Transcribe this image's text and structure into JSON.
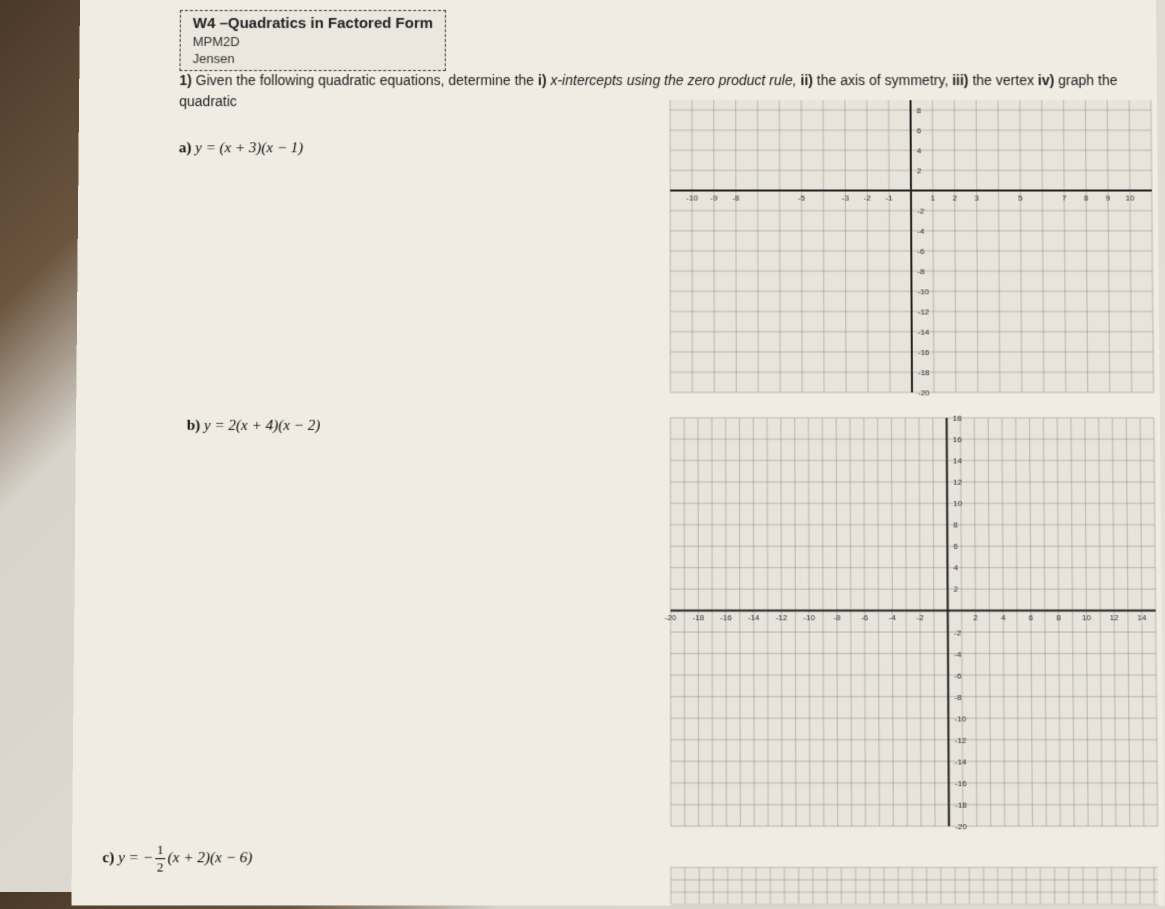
{
  "header": {
    "title": "W4 –Quadratics in Factored Form",
    "course": "MPM2D",
    "teacher": "Jensen"
  },
  "question": {
    "number": "1)",
    "text_part1": "Given the following quadratic equations, determine the ",
    "part_i": "i)",
    "text_i": " x-intercepts using the zero product rule, ",
    "part_ii": "ii)",
    "text_ii": " the axis of symmetry, ",
    "part_iii": "iii)",
    "text_iii": " the vertex ",
    "part_iv": "iv)",
    "text_iv": " graph the quadratic"
  },
  "equations": {
    "a": {
      "label": "a)",
      "formula": "y = (x + 3)(x − 1)"
    },
    "b": {
      "label": "b)",
      "formula": "y = 2(x + 4)(x − 2)"
    },
    "c": {
      "label": "c)",
      "prefix": "y = −",
      "num": "1",
      "den": "2",
      "suffix": "(x + 2)(x − 6)"
    }
  },
  "grid_a": {
    "type": "coordinate_grid",
    "x_range": [
      -11,
      11
    ],
    "y_range": [
      -20,
      9
    ],
    "x_step": 1,
    "y_step": 2,
    "axis_x_y": 0,
    "axis_y_x": 0,
    "grid_color": "#888",
    "axis_color": "#222",
    "x_labels": [
      -10,
      -9,
      -8,
      -5,
      -3,
      -2,
      -1,
      1,
      2,
      3,
      5,
      7,
      8,
      9,
      10
    ],
    "y_labels": [
      -20,
      -18,
      -16,
      -14,
      -12,
      -10,
      -8,
      -6,
      -4,
      -2,
      2,
      4,
      6,
      8
    ]
  },
  "grid_b": {
    "type": "coordinate_grid",
    "x_range": [
      -20,
      15
    ],
    "y_range": [
      -20,
      18
    ],
    "x_step": 1,
    "y_step": 2,
    "axis_x_y": 0,
    "axis_y_x": 0,
    "grid_color": "#888",
    "axis_color": "#222",
    "x_labels": [
      -20,
      -18,
      -16,
      -14,
      -12,
      -10,
      -8,
      -6,
      -4,
      -2,
      2,
      4,
      6,
      8,
      10,
      12,
      14
    ],
    "y_labels": [
      -20,
      -18,
      -16,
      -14,
      -12,
      -10,
      -8,
      -6,
      -4,
      -2,
      2,
      4,
      6,
      8,
      10,
      12,
      14,
      16,
      18
    ]
  }
}
